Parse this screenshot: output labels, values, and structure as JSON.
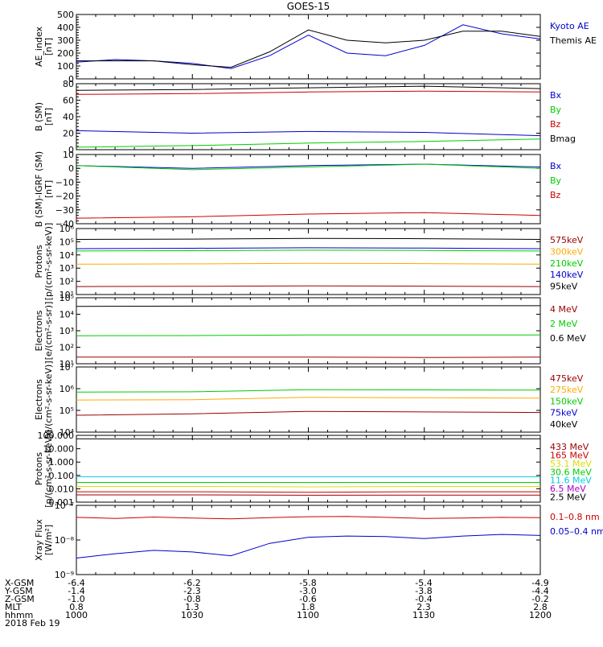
{
  "title": "GOES-15",
  "colors": {
    "black": "#000000",
    "blue": "#0000cc",
    "green": "#00cc00",
    "red": "#cc0000",
    "orange": "#ffaa00",
    "cyan": "#00ccdd",
    "yellow": "#dddd00",
    "purple": "#aa00cc",
    "darkred": "#990000"
  },
  "chart_data": [
    {
      "type": "line",
      "ylabel": "AE_index\n[nT]",
      "yscale": "linear",
      "ylim": [
        0,
        500
      ],
      "yticks": [
        0,
        100,
        200,
        300,
        400,
        500
      ],
      "ytick_labels": [
        "0",
        "100",
        "200",
        "300",
        "400",
        "500"
      ],
      "x": [
        0,
        10,
        20,
        30,
        40,
        50,
        60,
        70,
        80,
        90,
        100,
        110,
        120
      ],
      "series": [
        {
          "name": "Kyoto AE",
          "color": "blue",
          "values": [
            130,
            150,
            140,
            120,
            80,
            180,
            340,
            200,
            180,
            260,
            420,
            350,
            310
          ]
        },
        {
          "name": "Themis AE",
          "color": "black",
          "values": [
            140,
            140,
            140,
            110,
            90,
            210,
            380,
            300,
            280,
            300,
            370,
            370,
            330
          ]
        }
      ]
    },
    {
      "type": "line",
      "ylabel": "B (SM)\n[nT]",
      "yscale": "linear",
      "ylim": [
        0,
        80
      ],
      "yticks": [
        0,
        20,
        40,
        60,
        80
      ],
      "ytick_labels": [
        "0",
        "20",
        "40",
        "60",
        "80"
      ],
      "x": [
        0,
        30,
        60,
        90,
        120
      ],
      "series": [
        {
          "name": "Bx",
          "color": "blue",
          "values": [
            23,
            20,
            22,
            21,
            17
          ]
        },
        {
          "name": "By",
          "color": "green",
          "values": [
            3,
            5,
            8,
            10,
            13
          ]
        },
        {
          "name": "Bz",
          "color": "red",
          "values": [
            67,
            68,
            70,
            71,
            70
          ]
        },
        {
          "name": "Bmag",
          "color": "black",
          "values": [
            72,
            73,
            75,
            77,
            74
          ]
        }
      ]
    },
    {
      "type": "line",
      "ylabel": "B (SM)-IGRF (SM)\n[nT]",
      "yscale": "linear",
      "ylim": [
        -40,
        10
      ],
      "yticks": [
        -40,
        -30,
        -20,
        -10,
        0,
        10
      ],
      "ytick_labels": [
        "−40",
        "−30",
        "−20",
        "−10",
        "0",
        "10"
      ],
      "x": [
        0,
        30,
        60,
        90,
        120
      ],
      "series": [
        {
          "name": "Bx",
          "color": "blue",
          "values": [
            2,
            0,
            2,
            3,
            1
          ]
        },
        {
          "name": "By",
          "color": "green",
          "values": [
            2,
            -1,
            1,
            3,
            0
          ]
        },
        {
          "name": "Bz",
          "color": "red",
          "values": [
            -36,
            -35,
            -33,
            -32,
            -34
          ]
        }
      ]
    },
    {
      "type": "line",
      "ylabel": "Protons\n[p/(cm²-s-sr-keV)]",
      "yscale": "log",
      "ylim": [
        10,
        1000000
      ],
      "yticks": [
        10,
        100,
        1000,
        10000,
        100000,
        1000000
      ],
      "ytick_labels": [
        "10¹",
        "10²",
        "10³",
        "10⁴",
        "10⁵",
        "10⁶"
      ],
      "x": [
        0,
        30,
        60,
        90,
        120
      ],
      "series": [
        {
          "name": "575keV",
          "color": "darkred",
          "values": [
            40,
            42,
            45,
            43,
            40
          ]
        },
        {
          "name": "300keV",
          "color": "orange",
          "values": [
            2000,
            2100,
            2300,
            2200,
            2000
          ]
        },
        {
          "name": "210keV",
          "color": "green",
          "values": [
            20000,
            21000,
            23000,
            22000,
            20000
          ]
        },
        {
          "name": "140keV",
          "color": "blue",
          "values": [
            30000,
            32000,
            35000,
            33000,
            30000
          ]
        },
        {
          "name": "95keV",
          "color": "black",
          "values": [
            150000,
            160000,
            180000,
            170000,
            150000
          ]
        }
      ]
    },
    {
      "type": "line",
      "ylabel": "Electrons\n[e/(cm²-s-sr)]",
      "yscale": "log",
      "ylim": [
        10,
        100000
      ],
      "yticks": [
        10,
        100,
        1000,
        10000,
        100000
      ],
      "ytick_labels": [
        "10¹",
        "10²",
        "10³",
        "10⁴",
        "10⁵"
      ],
      "x": [
        0,
        30,
        60,
        90,
        120
      ],
      "series": [
        {
          "name": "4 MeV",
          "color": "darkred",
          "values": [
            25,
            25,
            25,
            24,
            25
          ]
        },
        {
          "name": "2 MeV",
          "color": "green",
          "values": [
            500,
            510,
            550,
            560,
            560
          ]
        },
        {
          "name": "0.6 MeV",
          "color": "black",
          "values": [
            30000,
            31000,
            32000,
            33000,
            33000
          ]
        }
      ]
    },
    {
      "type": "line",
      "ylabel": "Electrons\n[e/(cm²-s-sr-keV)]",
      "yscale": "log",
      "ylim": [
        10000,
        10000000
      ],
      "yticks": [
        10000,
        100000,
        1000000,
        10000000
      ],
      "ytick_labels": [
        "10⁴",
        "10⁵",
        "10⁶",
        "10⁷"
      ],
      "x": [
        0,
        30,
        60,
        90,
        120
      ],
      "series": [
        {
          "name": "475keV",
          "color": "darkred",
          "values": [
            60000,
            70000,
            90000,
            85000,
            80000
          ]
        },
        {
          "name": "275keV",
          "color": "orange",
          "values": [
            300000,
            310000,
            400000,
            380000,
            370000
          ]
        },
        {
          "name": "150keV",
          "color": "green",
          "values": [
            700000,
            720000,
            900000,
            880000,
            860000
          ]
        },
        {
          "name": "75keV",
          "color": "blue",
          "values": [
            null,
            null,
            null,
            null,
            null
          ]
        },
        {
          "name": "40keV",
          "color": "black",
          "values": [
            null,
            null,
            null,
            null,
            null
          ]
        }
      ]
    },
    {
      "type": "line",
      "ylabel": "Protons\n[p/(cm²-s-sr-keV)]",
      "yscale": "log",
      "ylim": [
        0.001,
        100
      ],
      "yticks": [
        0.001,
        0.01,
        0.1,
        1,
        10,
        100
      ],
      "ytick_labels": [
        "0.001",
        "0.010",
        "0.100",
        "1.000",
        "10.000",
        "100.000"
      ],
      "x": [
        0,
        30,
        60,
        90,
        120
      ],
      "series": [
        {
          "name": "433 MeV",
          "color": "darkred",
          "values": [
            0.0035,
            0.0035,
            0.0033,
            0.0034,
            0.0034
          ]
        },
        {
          "name": "165 MeV",
          "color": "red",
          "values": [
            0.006,
            0.006,
            0.0055,
            0.006,
            0.006
          ]
        },
        {
          "name": "53.1 MeV",
          "color": "yellow",
          "values": [
            0.015,
            0.015,
            0.014,
            0.015,
            0.015
          ]
        },
        {
          "name": "30.6 MeV",
          "color": "green",
          "values": [
            0.03,
            0.03,
            0.03,
            0.03,
            0.03
          ]
        },
        {
          "name": "11.6 MeV",
          "color": "cyan",
          "values": [
            0.08,
            0.08,
            0.08,
            0.08,
            0.08
          ]
        },
        {
          "name": "6.5 MeV",
          "color": "purple",
          "values": [
            null,
            null,
            null,
            null,
            null
          ]
        },
        {
          "name": "2.5 MeV",
          "color": "black",
          "values": [
            55,
            54,
            56,
            55,
            55
          ]
        }
      ]
    },
    {
      "type": "line",
      "ylabel": "Xray Flux\n[W/m²]",
      "yscale": "log",
      "ylim": [
        1e-09,
        1e-07
      ],
      "yticks": [
        1e-09,
        1e-08,
        1e-07
      ],
      "ytick_labels": [
        "10⁻⁹",
        "10⁻⁸",
        "10⁻⁷"
      ],
      "x": [
        0,
        10,
        20,
        30,
        40,
        50,
        60,
        70,
        80,
        90,
        100,
        110,
        120
      ],
      "series": [
        {
          "name": "0.1–0.8 nm",
          "color": "red",
          "values": [
            4.5e-08,
            4.2e-08,
            4.6e-08,
            4.3e-08,
            4.1e-08,
            4.4e-08,
            4.7e-08,
            4.8e-08,
            4.5e-08,
            4.2e-08,
            4.3e-08,
            4.5e-08,
            4.4e-08
          ]
        },
        {
          "name": "0.05–0.4 nm",
          "color": "blue",
          "values": [
            3e-09,
            4e-09,
            5e-09,
            4.5e-09,
            3.5e-09,
            8e-09,
            1.2e-08,
            1.3e-08,
            1.25e-08,
            1.1e-08,
            1.3e-08,
            1.45e-08,
            1.35e-08
          ]
        }
      ]
    }
  ],
  "x_axis": {
    "range": [
      1000,
      1200
    ],
    "rows": [
      {
        "label": "X-GSM",
        "values": [
          "-6.4",
          "-6.2",
          "-5.8",
          "-5.4",
          "-4.9"
        ]
      },
      {
        "label": "Y-GSM",
        "values": [
          "-1.4",
          "-2.3",
          "-3.0",
          "-3.8",
          "-4.4"
        ]
      },
      {
        "label": "Z-GSM",
        "values": [
          "-1.0",
          "-0.8",
          "-0.6",
          "-0.4",
          "-0.2"
        ]
      },
      {
        "label": "MLT",
        "values": [
          "0.8",
          "1.3",
          "1.8",
          "2.3",
          "2.8"
        ]
      },
      {
        "label": "hhmm",
        "values": [
          "1000",
          "1030",
          "1100",
          "1130",
          "1200"
        ]
      }
    ],
    "date": "2018 Feb 19"
  }
}
